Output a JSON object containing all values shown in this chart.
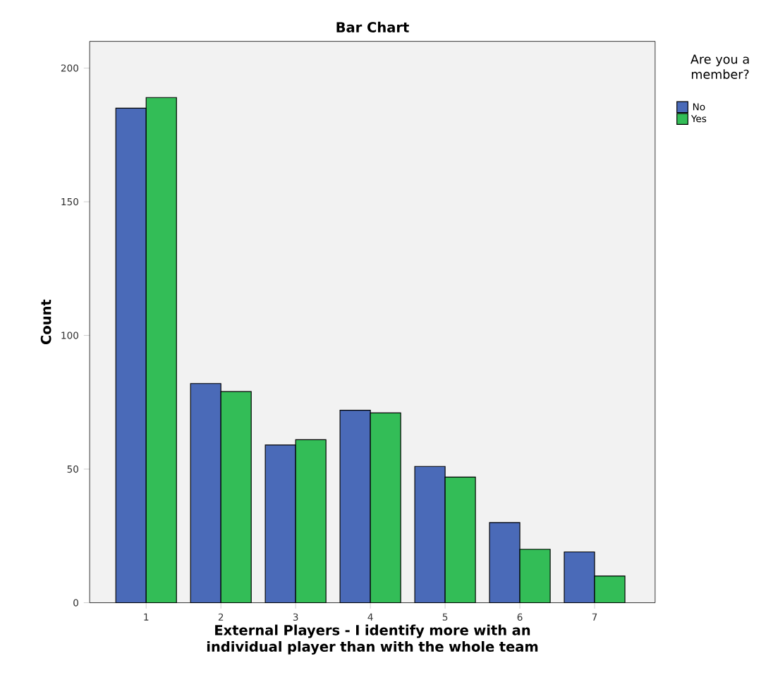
{
  "chart_data": {
    "type": "bar",
    "title": "Bar Chart",
    "xlabel": "External Players - I identify more with an individual player than with the whole team",
    "ylabel": "Count",
    "legend_title": "Are you a member?",
    "legend": "top right",
    "categories": [
      "1",
      "2",
      "3",
      "4",
      "5",
      "6",
      "7"
    ],
    "series": [
      {
        "name": "No",
        "color": "#4a6ab8",
        "values": [
          185,
          82,
          59,
          72,
          51,
          30,
          19
        ]
      },
      {
        "name": "Yes",
        "color": "#33bd57",
        "values": [
          189,
          79,
          61,
          71,
          47,
          20,
          10
        ]
      }
    ],
    "ylim": [
      0,
      210
    ],
    "yticks": [
      0,
      50,
      100,
      150,
      200
    ],
    "grid": false
  }
}
